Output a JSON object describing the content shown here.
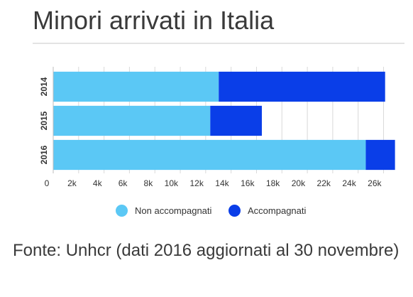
{
  "header": {
    "title": "Minori arrivati in Italia"
  },
  "footer": {
    "source": "Fonte: Unhcr (dati 2016 aggiornati al 30 novembre)"
  },
  "colors": {
    "non_accompagnati": "#5bc8f5",
    "accompagnati": "#0a3ee8",
    "gridline": "#d9d9d9",
    "tick_text": "#333333"
  },
  "chart_data": {
    "type": "bar",
    "orientation": "horizontal",
    "stacked": true,
    "title": "",
    "xlabel": "",
    "ylabel": "",
    "categories": [
      "2014",
      "2015",
      "2016"
    ],
    "series": [
      {
        "name": "Non accompagnati",
        "values": [
          13026,
          12360,
          24600
        ]
      },
      {
        "name": "Accompagnati",
        "values": [
          13096,
          4060,
          2300
        ]
      }
    ],
    "xlim": [
      0,
      27200
    ],
    "xticks": [
      0,
      2000,
      4000,
      6000,
      8000,
      10000,
      12000,
      14000,
      16000,
      18000,
      20000,
      22000,
      24000,
      26000
    ],
    "xtick_labels": [
      "0",
      "2k",
      "4k",
      "6k",
      "8k",
      "10k",
      "12k",
      "14k",
      "16k",
      "18k",
      "20k",
      "22k",
      "24k",
      "26k"
    ],
    "grid": true,
    "legend_position": "bottom"
  }
}
